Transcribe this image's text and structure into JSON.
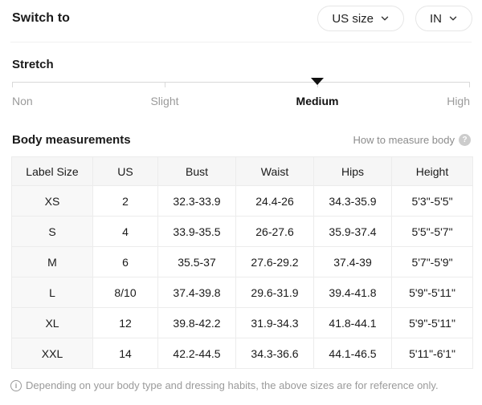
{
  "header": {
    "title": "Switch to",
    "size_unit_button": "US size",
    "measure_unit_button": "IN"
  },
  "stretch": {
    "title": "Stretch",
    "options": [
      "Non",
      "Slight",
      "Medium",
      "High"
    ],
    "selected": "Medium"
  },
  "body_measurements": {
    "title": "Body measurements",
    "help_link": "How to measure body"
  },
  "size_table": {
    "columns": [
      "Label Size",
      "US",
      "Bust",
      "Waist",
      "Hips",
      "Height"
    ],
    "rows": [
      [
        "XS",
        "2",
        "32.3-33.9",
        "24.4-26",
        "34.3-35.9",
        "5'3\"-5'5\""
      ],
      [
        "S",
        "4",
        "33.9-35.5",
        "26-27.6",
        "35.9-37.4",
        "5'5\"-5'7\""
      ],
      [
        "M",
        "6",
        "35.5-37",
        "27.6-29.2",
        "37.4-39",
        "5'7\"-5'9\""
      ],
      [
        "L",
        "8/10",
        "37.4-39.8",
        "29.6-31.9",
        "39.4-41.8",
        "5'9\"-5'11\""
      ],
      [
        "XL",
        "12",
        "39.8-42.2",
        "31.9-34.3",
        "41.8-44.1",
        "5'9\"-5'11\""
      ],
      [
        "XXL",
        "14",
        "42.2-44.5",
        "34.3-36.6",
        "44.1-46.5",
        "5'11\"-6'1\""
      ]
    ]
  },
  "footer": {
    "note": "Depending on your body type and dressing habits, the above sizes are for reference only."
  },
  "icons": {
    "help": "?",
    "info": "i"
  },
  "colors": {
    "text": "#1a1a1a",
    "muted_text": "#9a9a9a",
    "table_border": "#ececec",
    "table_header_bg": "#f6f6f6",
    "label_column_bg": "#f8f8f8",
    "marker": "#111111"
  }
}
